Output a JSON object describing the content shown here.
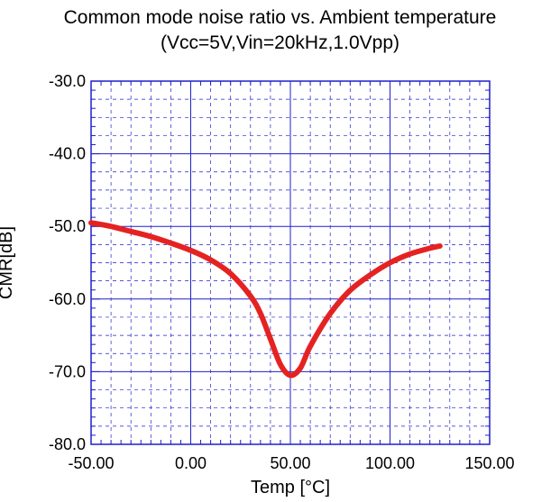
{
  "chart_data": {
    "type": "line",
    "title": "Common mode noise ratio vs. Ambient temperature",
    "subtitle": "(Vcc=5V,Vin=20kHz,1.0Vpp)",
    "xlabel": "Temp [°C]",
    "ylabel": "CMR[dB]",
    "xlim": [
      -50,
      150
    ],
    "ylim": [
      -80,
      -30
    ],
    "x_ticks": [
      "-50.00",
      "0.00",
      "50.00",
      "100.00",
      "150.00"
    ],
    "y_ticks": [
      "-30.0",
      "-40.0",
      "-50.0",
      "-60.0",
      "-70.0",
      "-80.0"
    ],
    "grid": true,
    "colors": {
      "series": "#e52222",
      "grid": "#1f1fcc",
      "axes": "#1f1fcc"
    },
    "series": [
      {
        "x": [
          -50,
          -40,
          -30,
          -20,
          -10,
          0,
          10,
          20,
          30,
          35,
          40,
          45,
          50,
          55,
          60,
          70,
          80,
          90,
          100,
          110,
          120,
          125
        ],
        "y": [
          -49.5,
          -50.0,
          -50.7,
          -51.4,
          -52.3,
          -53.3,
          -54.6,
          -56.5,
          -59.6,
          -62.0,
          -65.5,
          -69.0,
          -70.5,
          -69.5,
          -66.5,
          -62.0,
          -58.8,
          -56.7,
          -55.0,
          -53.8,
          -53.0,
          -52.7
        ]
      }
    ]
  }
}
